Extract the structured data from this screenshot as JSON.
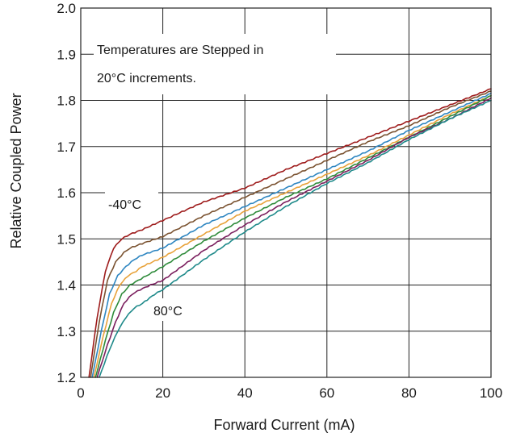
{
  "chart_data": {
    "type": "line",
    "title": "",
    "xlabel": "Forward Current (mA)",
    "ylabel": "Relative Coupled Power",
    "xlim": [
      0,
      100
    ],
    "ylim": [
      1.2,
      2.0
    ],
    "xticks": [
      0,
      20,
      40,
      60,
      80,
      100
    ],
    "yticks": [
      1.2,
      1.3,
      1.4,
      1.5,
      1.6,
      1.7,
      1.8,
      1.9,
      2.0
    ],
    "xtick_labels": [
      "0",
      "20",
      "40",
      "60",
      "80",
      "100"
    ],
    "ytick_labels": [
      "1.2",
      "1.3",
      "1.4",
      "1.5",
      "1.6",
      "1.7",
      "1.8",
      "1.9",
      "2.0"
    ],
    "grid": true,
    "legend": "none",
    "annotations": [
      {
        "lines": [
          "Temperatures are Stepped in",
          "20°C increments."
        ]
      },
      {
        "lines": [
          "-40°C"
        ]
      },
      {
        "lines": [
          "80°C"
        ]
      }
    ],
    "series": [
      {
        "color": "#9e1b1b",
        "x": [
          2,
          4,
          6,
          8,
          10,
          12,
          15,
          20,
          30,
          40,
          50,
          60,
          70,
          80,
          90,
          100
        ],
        "y": [
          1.2,
          1.33,
          1.43,
          1.48,
          1.5,
          1.51,
          1.52,
          1.54,
          1.58,
          1.61,
          1.65,
          1.685,
          1.72,
          1.755,
          1.79,
          1.825
        ]
      },
      {
        "color": "#7a5230",
        "x": [
          2.4,
          4.5,
          6.5,
          8.5,
          10.5,
          12,
          15,
          20,
          30,
          40,
          50,
          60,
          70,
          80,
          90,
          100
        ],
        "y": [
          1.2,
          1.32,
          1.41,
          1.45,
          1.47,
          1.48,
          1.49,
          1.505,
          1.55,
          1.59,
          1.63,
          1.67,
          1.71,
          1.745,
          1.785,
          1.82
        ]
      },
      {
        "color": "#2e86c1",
        "x": [
          2.8,
          5,
          7,
          9,
          11,
          13,
          15,
          20,
          30,
          40,
          50,
          60,
          70,
          80,
          90,
          100
        ],
        "y": [
          1.2,
          1.3,
          1.38,
          1.42,
          1.44,
          1.455,
          1.465,
          1.48,
          1.53,
          1.57,
          1.61,
          1.65,
          1.69,
          1.735,
          1.775,
          1.815
        ]
      },
      {
        "color": "#e8a23a",
        "x": [
          3.2,
          5.5,
          7.5,
          9.5,
          11.5,
          13.5,
          15,
          20,
          30,
          40,
          50,
          60,
          70,
          80,
          90,
          100
        ],
        "y": [
          1.2,
          1.29,
          1.36,
          1.4,
          1.42,
          1.43,
          1.44,
          1.46,
          1.51,
          1.56,
          1.6,
          1.64,
          1.68,
          1.725,
          1.77,
          1.81
        ]
      },
      {
        "color": "#2e8b3a",
        "x": [
          3.6,
          6,
          8,
          10,
          12,
          14,
          16,
          20,
          30,
          40,
          50,
          60,
          70,
          80,
          90,
          100
        ],
        "y": [
          1.2,
          1.28,
          1.34,
          1.38,
          1.4,
          1.41,
          1.42,
          1.44,
          1.495,
          1.545,
          1.59,
          1.63,
          1.675,
          1.72,
          1.765,
          1.81
        ]
      },
      {
        "color": "#7b1f5e",
        "x": [
          4,
          6.5,
          8.5,
          10.5,
          12.5,
          14.5,
          17,
          20,
          30,
          40,
          50,
          60,
          70,
          80,
          90,
          100
        ],
        "y": [
          1.2,
          1.27,
          1.32,
          1.36,
          1.38,
          1.39,
          1.4,
          1.41,
          1.475,
          1.53,
          1.58,
          1.625,
          1.67,
          1.72,
          1.76,
          1.805
        ]
      },
      {
        "color": "#1f8a8a",
        "x": [
          4.5,
          7,
          9,
          11,
          13,
          15,
          18,
          20,
          30,
          40,
          50,
          60,
          70,
          80,
          90,
          100
        ],
        "y": [
          1.2,
          1.26,
          1.3,
          1.33,
          1.35,
          1.36,
          1.38,
          1.39,
          1.455,
          1.515,
          1.57,
          1.62,
          1.665,
          1.715,
          1.76,
          1.8
        ]
      }
    ]
  }
}
